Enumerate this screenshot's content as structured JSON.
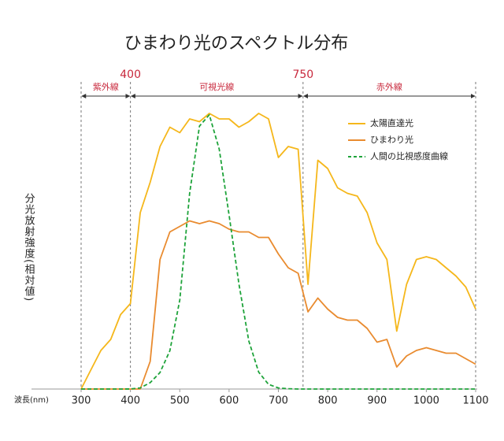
{
  "chart_data": {
    "type": "line",
    "title": "ひまわり光のスペクトル分布",
    "x_label": "波長(nm)",
    "y_label": "分光放射強度(相対値)",
    "x": [
      300,
      320,
      340,
      360,
      380,
      400,
      420,
      440,
      460,
      480,
      500,
      520,
      540,
      560,
      580,
      600,
      620,
      640,
      660,
      680,
      700,
      720,
      740,
      760,
      780,
      800,
      820,
      840,
      860,
      880,
      900,
      920,
      940,
      960,
      980,
      1000,
      1020,
      1040,
      1060,
      1080,
      1100
    ],
    "xlim": [
      300,
      1100
    ],
    "xticks": [
      300,
      400,
      500,
      600,
      700,
      800,
      900,
      1000,
      1100
    ],
    "ylim": [
      0,
      100
    ],
    "marked_x": [
      400,
      750
    ],
    "boundaries": [
      300,
      400,
      750,
      1100
    ],
    "regions": [
      {
        "label": "紫外線",
        "range": [
          300,
          400
        ]
      },
      {
        "label": "可視光線",
        "range": [
          400,
          750
        ]
      },
      {
        "label": "赤外線",
        "range": [
          750,
          1100
        ]
      }
    ],
    "series": [
      {
        "name": "太陽直達光",
        "color": "#f5b71b",
        "dashed": false,
        "values": [
          0,
          7,
          14,
          18,
          27,
          31,
          64,
          75,
          88,
          95,
          93,
          98,
          97,
          100,
          98,
          98,
          95,
          97,
          100,
          98,
          84,
          88,
          87,
          38,
          83,
          80,
          73,
          71,
          70,
          64,
          53,
          47,
          21,
          38,
          47,
          48,
          47,
          44,
          41,
          37,
          29
        ]
      },
      {
        "name": "ひまわり光",
        "color": "#e98b2f",
        "dashed": false,
        "values": [
          0,
          0,
          0,
          0,
          0,
          0,
          0,
          10,
          47,
          57,
          59,
          61,
          60,
          61,
          60,
          58,
          57,
          57,
          55,
          55,
          49,
          44,
          42,
          28,
          33,
          29,
          26,
          25,
          25,
          22,
          17,
          18,
          8,
          12,
          14,
          15,
          14,
          13,
          13,
          11,
          9
        ]
      },
      {
        "name": "人間の比視感度曲線",
        "color": "#1ea33a",
        "dashed": true,
        "values": [
          0,
          0,
          0,
          0,
          0,
          0.04,
          0.4,
          2.3,
          6,
          13.9,
          32.3,
          71,
          95.4,
          99.5,
          87,
          63.1,
          38.1,
          17.5,
          6.1,
          1.7,
          0.4,
          0.1,
          0,
          0,
          0,
          0,
          0,
          0,
          0,
          0,
          0,
          0,
          0,
          0,
          0,
          0,
          0,
          0,
          0,
          0,
          0
        ]
      }
    ],
    "accent_color": "#c8283c"
  }
}
